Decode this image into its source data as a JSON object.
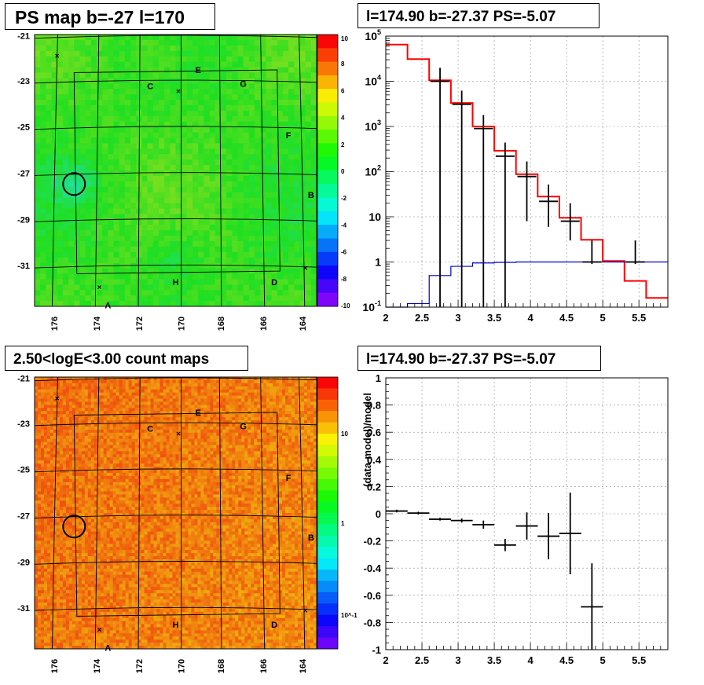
{
  "titles": {
    "ps_map": "PS map b=-27 l=170",
    "spectrum": "l=174.90 b=-27.37 PS=-5.07",
    "count_map": "2.50<logE<3.00 count maps",
    "residual": "l=174.90 b=-27.37 PS=-5.07"
  },
  "chart_data": [
    {
      "type": "heatmap",
      "name": "ps-map",
      "xticks": [
        "176",
        "174",
        "172",
        "170",
        "168",
        "166",
        "164"
      ],
      "yticks": [
        "-21",
        "-23",
        "-25",
        "-27",
        "-29",
        "-31"
      ],
      "colorbar_ticks": [
        "10",
        "8",
        "6",
        "4",
        "2",
        "0",
        "-2",
        "-4",
        "-6",
        "-8",
        "-10"
      ],
      "colorbar_range": [
        -10,
        10
      ],
      "region_labels": [
        "A",
        "B",
        "C",
        "D",
        "E",
        "F",
        "G",
        "H"
      ],
      "circle_center": {
        "l": 174.9,
        "b": -27.37
      }
    },
    {
      "type": "line",
      "name": "spectrum",
      "ylog": true,
      "xlim": [
        2,
        5.9
      ],
      "ylim": [
        0.1,
        100000
      ],
      "xticks": [
        "2",
        "2.5",
        "3",
        "3.5",
        "4",
        "4.5",
        "5",
        "5.5"
      ],
      "yticks": [
        "10^5",
        "10^4",
        "10^3",
        "10^2",
        "10",
        "1",
        "10^-1"
      ],
      "bin_edges": [
        2,
        2.3,
        2.6,
        2.9,
        3.2,
        3.5,
        3.8,
        4.1,
        4.4,
        4.7,
        5.0,
        5.3,
        5.6,
        5.9
      ],
      "series": [
        {
          "color": "#ff0000",
          "values": [
            65000,
            31000,
            10500,
            3300,
            1000,
            290,
            88,
            28,
            9.5,
            3.1,
            1.05,
            0.38,
            0.16
          ]
        },
        {
          "color": "#0000cc",
          "values": [
            0.1,
            0.12,
            0.5,
            0.8,
            0.95,
            0.98,
            1.0,
            1.0,
            1.0,
            1.0,
            1.0,
            1.0,
            1.0
          ]
        }
      ],
      "data_points": [
        {
          "x": 2.75,
          "y": 10000,
          "err": [
            10000,
            10000
          ]
        },
        {
          "x": 3.05,
          "y": 3100,
          "err": [
            3100,
            3100
          ]
        },
        {
          "x": 3.35,
          "y": 900,
          "err": [
            900,
            900
          ]
        },
        {
          "x": 3.65,
          "y": 220,
          "err": [
            220,
            220
          ]
        },
        {
          "x": 3.95,
          "y": 78,
          "err": [
            70,
            90
          ]
        },
        {
          "x": 4.25,
          "y": 22,
          "err": [
            16,
            30
          ]
        },
        {
          "x": 4.55,
          "y": 8,
          "err": [
            5,
            12
          ]
        },
        {
          "x": 4.85,
          "y": 1,
          "err": [
            0.1,
            2
          ]
        },
        {
          "x": 5.45,
          "y": 1,
          "err": [
            0.1,
            2
          ]
        }
      ]
    },
    {
      "type": "heatmap",
      "name": "count-map",
      "xticks": [
        "176",
        "174",
        "172",
        "170",
        "168",
        "166",
        "164"
      ],
      "yticks": [
        "-21",
        "-23",
        "-25",
        "-27",
        "-29",
        "-31"
      ],
      "colorbar_ticks": [
        "10",
        "1",
        "10^-1"
      ],
      "region_labels": [
        "A",
        "B",
        "C",
        "D",
        "E",
        "F",
        "G",
        "H"
      ]
    },
    {
      "type": "scatter",
      "name": "residual",
      "ylabel": "(data-model)/model",
      "xlim": [
        2,
        5.9
      ],
      "ylim": [
        -1,
        1
      ],
      "xticks": [
        "2",
        "2.5",
        "3",
        "3.5",
        "4",
        "4.5",
        "5",
        "5.5"
      ],
      "yticks": [
        "1",
        "0.8",
        "0.6",
        "0.4",
        "0.2",
        "0",
        "-0.2",
        "-0.4",
        "-0.6",
        "-0.8",
        "-1"
      ],
      "points": [
        {
          "x": 2.15,
          "y": 0.02,
          "ey": 0.01
        },
        {
          "x": 2.45,
          "y": 0.005,
          "ey": 0.01
        },
        {
          "x": 2.75,
          "y": -0.04,
          "ey": 0.01
        },
        {
          "x": 3.05,
          "y": -0.05,
          "ey": 0.015
        },
        {
          "x": 3.35,
          "y": -0.08,
          "ey": 0.03
        },
        {
          "x": 3.65,
          "y": -0.23,
          "ey": 0.045
        },
        {
          "x": 3.95,
          "y": -0.09,
          "ey": 0.1
        },
        {
          "x": 4.25,
          "y": -0.165,
          "ey": 0.17
        },
        {
          "x": 4.55,
          "y": -0.145,
          "ey": 0.3
        },
        {
          "x": 4.85,
          "y": -0.685,
          "ey": 0.32
        }
      ]
    }
  ]
}
